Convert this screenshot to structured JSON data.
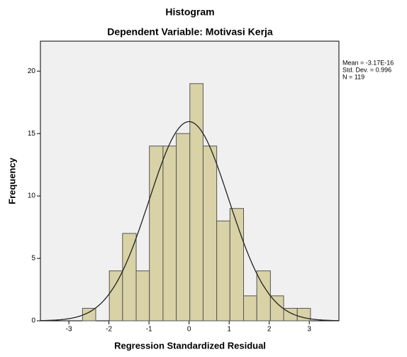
{
  "chart_data": {
    "type": "histogram",
    "title": "Histogram",
    "subtitle": "Dependent Variable: Motivasi Kerja",
    "xlabel": "Regression Standardized Residual",
    "ylabel": "Frequency",
    "bins": [
      -2.66,
      -2.33,
      -1.99,
      -1.66,
      -1.32,
      -0.99,
      -0.65,
      -0.32,
      0.02,
      0.35,
      0.69,
      1.02,
      1.36,
      1.69,
      2.03,
      2.36,
      2.7,
      3.03
    ],
    "values": [
      1,
      0,
      4,
      7,
      4,
      14,
      14,
      15,
      19,
      14,
      8,
      9,
      2,
      4,
      2,
      1,
      1
    ],
    "color": "#d8d2a6",
    "xlim": [
      -3.71,
      3.74
    ],
    "xticks": [
      -3,
      -2,
      -1,
      0,
      1,
      2,
      3
    ],
    "ylim": [
      0,
      22.4
    ],
    "yticks": [
      0,
      5,
      10,
      15,
      20
    ],
    "stats": [
      {
        "label": "Mean = -3.17E-16",
        "value": -3.17e-16
      },
      {
        "label": "Std. Dev. = 0.996",
        "value": 0.996
      },
      {
        "label": "N = 119",
        "value": 119
      }
    ],
    "normal_curve": true
  }
}
